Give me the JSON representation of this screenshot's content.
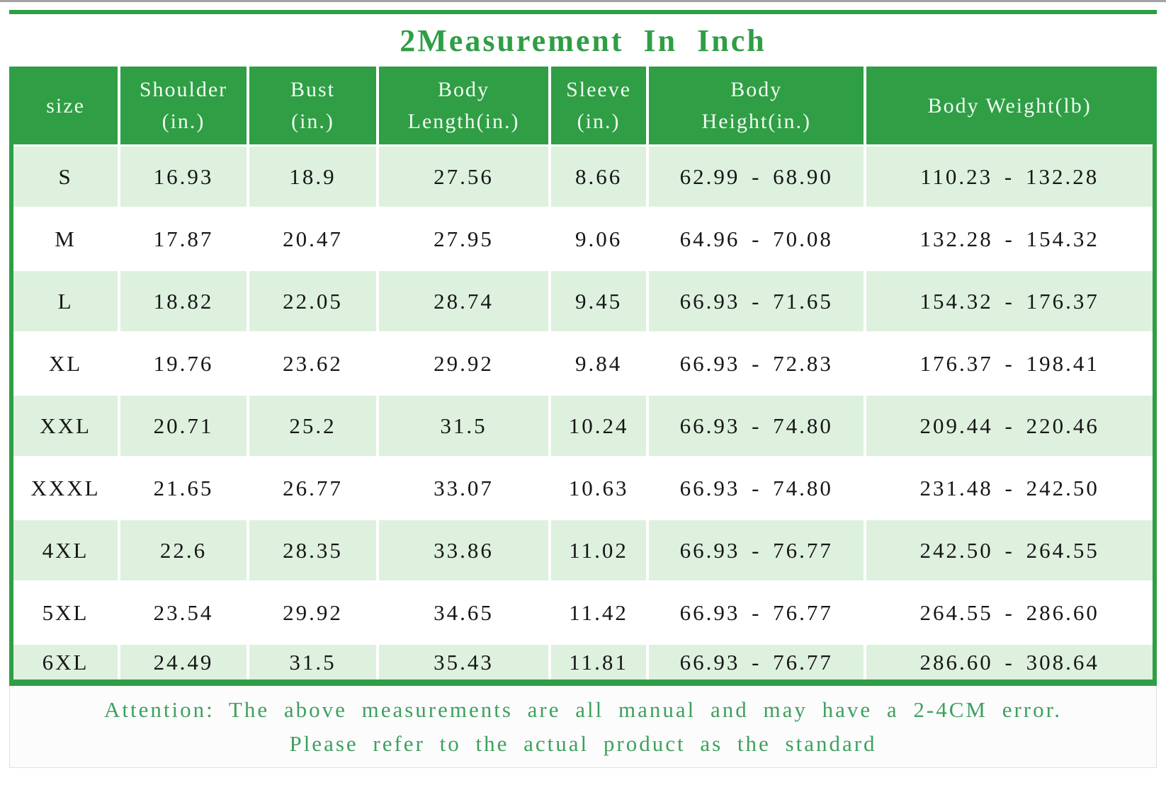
{
  "colors": {
    "accent_green": "#2F9E45",
    "row_light_green": "#DDF1DE",
    "note_green": "#3EA05E",
    "header_text": "#F2FBF2",
    "data_text": "#161616"
  },
  "chart_data": {
    "type": "table",
    "title": "2Measurement In Inch",
    "columns": [
      "size",
      "Shoulder\n(in.)",
      "Bust\n(in.)",
      "Body\nLength(in.)",
      "Sleeve\n(in.)",
      "Body\nHeight(in.)",
      "Body Weight(lb)"
    ],
    "rows": [
      [
        "S",
        "16.93",
        "18.9",
        "27.56",
        "8.66",
        "62.99 - 68.90",
        "110.23 - 132.28"
      ],
      [
        "M",
        "17.87",
        "20.47",
        "27.95",
        "9.06",
        "64.96 - 70.08",
        "132.28 - 154.32"
      ],
      [
        "L",
        "18.82",
        "22.05",
        "28.74",
        "9.45",
        "66.93 - 71.65",
        "154.32 - 176.37"
      ],
      [
        "XL",
        "19.76",
        "23.62",
        "29.92",
        "9.84",
        "66.93 - 72.83",
        "176.37 - 198.41"
      ],
      [
        "XXL",
        "20.71",
        "25.2",
        "31.5",
        "10.24",
        "66.93 - 74.80",
        "209.44 - 220.46"
      ],
      [
        "XXXL",
        "21.65",
        "26.77",
        "33.07",
        "10.63",
        "66.93 - 74.80",
        "231.48 - 242.50"
      ],
      [
        "4XL",
        "22.6",
        "28.35",
        "33.86",
        "11.02",
        "66.93 - 76.77",
        "242.50 - 264.55"
      ],
      [
        "5XL",
        "23.54",
        "29.92",
        "34.65",
        "11.42",
        "66.93 - 76.77",
        "264.55 - 286.60"
      ],
      [
        "6XL",
        "24.49",
        "31.5",
        "35.43",
        "11.81",
        "66.93 - 76.77",
        "286.60 - 308.64"
      ]
    ],
    "notes": [
      "Attention: The above measurements are all manual and may have a 2-4CM error.",
      "Please refer to the actual product as the standard"
    ]
  },
  "note": {
    "line1": "Attention: The above measurements are all manual and may have a 2-4CM error.",
    "line2": "Please refer to the actual product as the standard"
  }
}
